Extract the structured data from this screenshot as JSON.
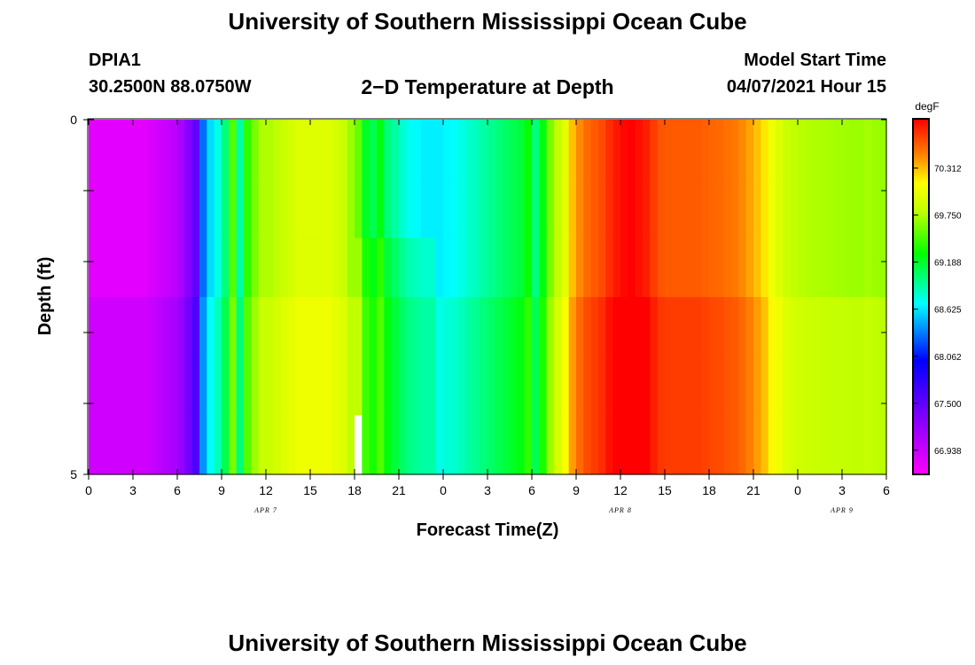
{
  "header": {
    "title": "University of Southern Mississippi Ocean Cube",
    "station": "DPIA1",
    "coords": "30.2500N  88.0750W",
    "plot_title": "2−D Temperature at Depth",
    "model_start_label": "Model Start Time",
    "model_start_value": "04/07/2021 Hour 15"
  },
  "footer": {
    "title": "University of Southern Mississippi Ocean Cube"
  },
  "chart_data": {
    "type": "heatmap",
    "title": "2−D Temperature at Depth",
    "xlabel": "Forecast Time(Z)",
    "ylabel": "Depth (ft)",
    "x_tick_labels": [
      "0",
      "3",
      "6",
      "9",
      "12",
      "15",
      "18",
      "21",
      "0",
      "3",
      "6",
      "9",
      "12",
      "15",
      "18",
      "21",
      "0",
      "3",
      "6"
    ],
    "day_labels": [
      {
        "text": "APR 7",
        "hour": 12
      },
      {
        "text": "APR 8",
        "hour": 36
      },
      {
        "text": "APR 9",
        "hour": 51
      }
    ],
    "x_range_hours": [
      0,
      54
    ],
    "y_range": [
      0,
      5
    ],
    "y_tick_labels": [
      "0",
      "5"
    ],
    "y_minor_ticks": [
      1,
      2,
      3,
      4
    ],
    "colorbar": {
      "unit": "degF",
      "min": 66.65,
      "max": 70.9,
      "labels": [
        "70.312",
        "69.750",
        "69.188",
        "68.625",
        "68.062",
        "67.500",
        "66.938"
      ],
      "label_values": [
        70.312,
        69.75,
        69.188,
        68.625,
        68.062,
        67.5,
        66.938
      ]
    },
    "time_hours": [
      0,
      0.5,
      1,
      1.5,
      2,
      2.5,
      3,
      3.5,
      4,
      4.5,
      5,
      5.5,
      6,
      6.5,
      7,
      7.5,
      8,
      8.5,
      9,
      9.5,
      10,
      10.5,
      11,
      11.5,
      12,
      12.5,
      13,
      13.5,
      14,
      14.5,
      15,
      15.5,
      16,
      16.5,
      17,
      17.5,
      18,
      18.5,
      19,
      19.5,
      20,
      20.5,
      21,
      21.5,
      22,
      22.5,
      23,
      23.5,
      24,
      24.5,
      25,
      25.5,
      26,
      26.5,
      27,
      27.5,
      28,
      28.5,
      29,
      29.5,
      30,
      30.5,
      31,
      31.5,
      32,
      32.5,
      33,
      33.5,
      34,
      34.5,
      35,
      35.5,
      36,
      36.5,
      37,
      37.5,
      38,
      38.5,
      39,
      39.5,
      40,
      40.5,
      41,
      41.5,
      42,
      42.5,
      43,
      43.5,
      44,
      44.5,
      45,
      45.5,
      46,
      46.5,
      47,
      47.5,
      48,
      48.5,
      49,
      49.5,
      50,
      50.5,
      51,
      51.5,
      52,
      52.5,
      53,
      53.5
    ],
    "surface_temp": [
      66.8,
      66.8,
      66.8,
      66.8,
      66.8,
      66.8,
      66.8,
      66.8,
      66.85,
      66.9,
      66.95,
      67.0,
      67.1,
      67.3,
      67.5,
      68.3,
      68.6,
      68.75,
      69.0,
      69.5,
      68.9,
      69.4,
      69.6,
      69.75,
      69.75,
      69.8,
      69.85,
      69.9,
      69.95,
      69.95,
      69.95,
      69.95,
      69.95,
      69.9,
      69.85,
      69.7,
      69.55,
      69.2,
      69.1,
      69.25,
      69.0,
      68.9,
      68.8,
      68.72,
      68.68,
      68.65,
      68.65,
      68.65,
      68.68,
      68.7,
      68.75,
      68.8,
      68.85,
      68.9,
      68.95,
      69.0,
      69.05,
      69.1,
      69.15,
      69.3,
      69.0,
      69.25,
      69.6,
      69.8,
      70.0,
      70.3,
      70.45,
      70.55,
      70.6,
      70.65,
      70.75,
      70.82,
      70.88,
      70.9,
      70.85,
      70.8,
      70.7,
      70.62,
      70.6,
      70.6,
      70.6,
      70.6,
      70.6,
      70.58,
      70.56,
      70.55,
      70.52,
      70.5,
      70.45,
      70.38,
      70.3,
      70.2,
      70.05,
      69.95,
      69.85,
      69.8,
      69.78,
      69.76,
      69.75,
      69.74,
      69.73,
      69.72,
      69.71,
      69.7,
      69.7,
      69.72,
      69.7,
      69.68
    ],
    "depth_offsets": [
      0,
      0,
      0,
      0.1,
      0.1,
      0.1
    ],
    "deep_shift_hours": [
      18,
      23
    ],
    "deep_shift_amount": 0.15,
    "gap_cell": {
      "row": 5,
      "hour": 18
    }
  }
}
